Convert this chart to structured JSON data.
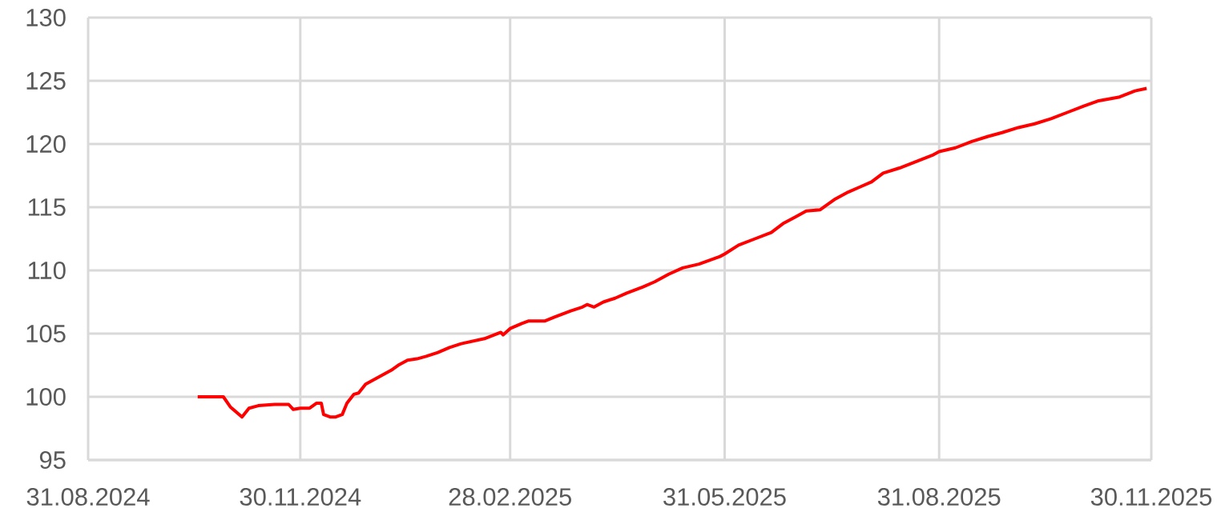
{
  "chart_data": {
    "type": "line",
    "color": "#ff0000",
    "grid": true,
    "x": [
      "2024-10-17",
      "2024-10-28",
      "2024-10-31",
      "2024-11-05",
      "2024-11-08",
      "2024-11-12",
      "2024-11-19",
      "2024-11-25",
      "2024-11-27",
      "2024-11-30",
      "2024-12-04",
      "2024-12-07",
      "2024-12-09",
      "2024-12-10",
      "2024-12-13",
      "2024-12-15",
      "2024-12-18",
      "2024-12-20",
      "2024-12-23",
      "2024-12-25",
      "2024-12-28",
      "2025-01-08",
      "2025-01-11",
      "2025-01-15",
      "2025-01-19",
      "2025-01-23",
      "2025-01-28",
      "2025-02-02",
      "2025-02-07",
      "2025-02-12",
      "2025-02-17",
      "2025-02-24",
      "2025-02-25",
      "2025-02-28",
      "2025-03-05",
      "2025-03-08",
      "2025-03-15",
      "2025-03-19",
      "2025-03-26",
      "2025-03-31",
      "2025-04-02",
      "2025-04-05",
      "2025-04-09",
      "2025-04-14",
      "2025-04-19",
      "2025-04-26",
      "2025-05-01",
      "2025-05-07",
      "2025-05-13",
      "2025-05-20",
      "2025-05-29",
      "2025-05-31",
      "2025-06-06",
      "2025-06-13",
      "2025-06-20",
      "2025-06-25",
      "2025-06-30",
      "2025-07-05",
      "2025-07-11",
      "2025-07-17",
      "2025-07-23",
      "2025-07-28",
      "2025-08-02",
      "2025-08-07",
      "2025-08-14",
      "2025-08-21",
      "2025-08-28",
      "2025-08-31",
      "2025-09-07",
      "2025-09-14",
      "2025-09-21",
      "2025-09-27",
      "2025-10-04",
      "2025-10-11",
      "2025-10-18",
      "2025-10-25",
      "2025-11-01",
      "2025-11-07",
      "2025-11-16",
      "2025-11-23",
      "2025-11-28"
    ],
    "values": [
      100.0,
      100.0,
      99.2,
      98.4,
      99.1,
      99.3,
      99.4,
      99.4,
      99.0,
      99.1,
      99.1,
      99.5,
      99.5,
      98.6,
      98.4,
      98.4,
      98.6,
      99.5,
      100.2,
      100.3,
      101.0,
      102.1,
      102.5,
      102.9,
      103.0,
      103.2,
      103.5,
      103.9,
      104.2,
      104.4,
      104.6,
      105.1,
      104.9,
      105.4,
      105.8,
      106.0,
      106.0,
      106.3,
      106.8,
      107.1,
      107.3,
      107.1,
      107.5,
      107.8,
      108.2,
      108.7,
      109.1,
      109.7,
      110.2,
      110.5,
      111.1,
      111.3,
      112.0,
      112.5,
      113.0,
      113.7,
      114.2,
      114.7,
      114.8,
      115.6,
      116.2,
      116.6,
      117.0,
      117.7,
      118.1,
      118.6,
      119.1,
      119.4,
      119.7,
      120.2,
      120.6,
      120.9,
      121.3,
      121.6,
      122.0,
      122.5,
      123.0,
      123.4,
      123.7,
      124.2,
      124.4
    ],
    "xlim": [
      "2024-08-31",
      "2025-11-30"
    ],
    "xticks": [
      {
        "value": "2024-08-31",
        "label": "31.08.2024"
      },
      {
        "value": "2024-11-30",
        "label": "30.11.2024"
      },
      {
        "value": "2025-02-28",
        "label": "28.02.2025"
      },
      {
        "value": "2025-05-31",
        "label": "31.05.2025"
      },
      {
        "value": "2025-08-31",
        "label": "31.08.2025"
      },
      {
        "value": "2025-11-30",
        "label": "30.11.2025"
      }
    ],
    "ylim": [
      95,
      130
    ],
    "yticks": [
      95,
      100,
      105,
      110,
      115,
      120,
      125,
      130
    ]
  }
}
